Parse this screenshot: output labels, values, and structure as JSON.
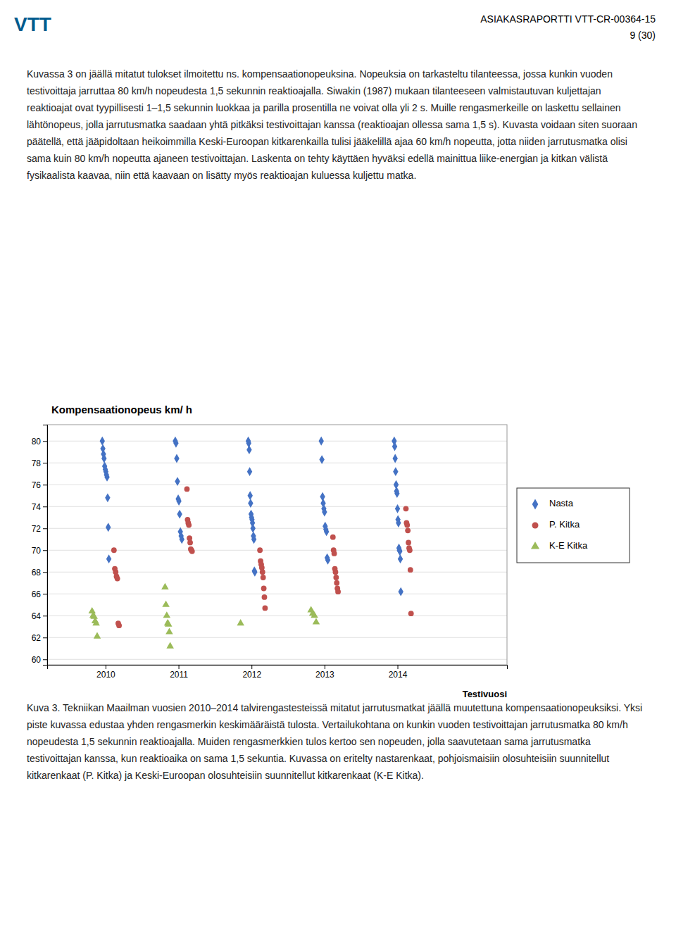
{
  "logo": "VTT",
  "header": [
    "ASIAKASRAPORTTI VTT-CR-00364-15",
    "9 (30)"
  ],
  "text": "Kuvassa 3 on jäällä mitatut tulokset ilmoitettu ns. kompensaationopeuksina. Nopeuksia on tarkasteltu tilanteessa, jossa kunkin vuoden testivoittaja jarruttaa 80 km/h nopeudesta 1,5 sekunnin reaktioajalla. Siwakin (1987) mukaan tilanteeseen valmistautuvan kuljettajan reaktioajat ovat tyypillisesti 1–1,5 sekunnin luokkaa ja parilla prosentilla ne voivat olla yli 2 s. Muille rengasmerkeille on laskettu sellainen lähtönopeus, jolla jarrutusmatka saadaan yhtä pitkäksi testivoittajan kanssa (reaktioajan ollessa sama 1,5 s). Kuvasta voidaan siten suoraan päätellä, että jääpidoltaan heikoimmilla Keski-Euroopan kitkarenkailla tulisi jääkelillä ajaa 60 km/h nopeutta, jotta niiden jarrutusmatka olisi sama kuin 80 km/h nopeutta ajaneen testivoittajan. Laskenta on tehty käyttäen hyväksi edellä mainittua liike-energian ja kitkan välistä fysikaalista kaavaa, niin että kaavaan on lisätty myös reaktioajan kuluessa kuljettu matka.",
  "caption": "Kuva 3. Tekniikan Maailman vuosien 2010–2014 talvirengastesteissä mitatut jarrutusmatkat jäällä muutettuna kompensaationopeuksiksi. Yksi piste kuvassa edustaa yhden rengasmerkin keskimääräistä tulosta. Vertailukohtana on kunkin vuoden testivoittajan jarrutusmatka 80 km/h nopeudesta 1,5 sekunnin reaktioajalla. Muiden rengasmerkkien tulos kertoo sen nopeuden, jolla saavutetaan sama jarrutusmatka testivoittajan kanssa, kun reaktioaika on sama 1,5 sekuntia. Kuvassa on eritelty nastarenkaat, pohjoismaisiin olosuhteisiin suunnitellut kitkarenkaat (P. Kitka) ja Keski-Euroopan olosuhteisiin suunnitellut kitkarenkaat (K-E Kitka).",
  "chart_data": {
    "type": "scatter",
    "title": "Kompensaationopeus km/ h",
    "x_label": "Testivuosi",
    "xlim": [
      2009.2,
      2015.5
    ],
    "xticks": [
      2010,
      2011,
      2012,
      2013,
      2014
    ],
    "ylim": [
      59.5,
      81.5
    ],
    "yticks": [
      60,
      62,
      64,
      66,
      68,
      70,
      72,
      74,
      76,
      78,
      80
    ],
    "grid": "y",
    "legend": "right",
    "series": [
      {
        "name": "Nasta",
        "color": "#4472C4",
        "marker": "diamond",
        "x": [
          2010,
          2010,
          2010,
          2010,
          2010,
          2010,
          2010,
          2010,
          2010,
          2010,
          2010,
          2010,
          2011,
          2011,
          2011,
          2011,
          2011,
          2011,
          2011,
          2011,
          2011,
          2011,
          2012,
          2012,
          2012,
          2012,
          2012,
          2012,
          2012,
          2012,
          2012,
          2012,
          2012,
          2012,
          2012,
          2012,
          2012,
          2013,
          2013,
          2013,
          2013,
          2013,
          2013,
          2013,
          2013,
          2013,
          2013,
          2013,
          2014,
          2014,
          2014,
          2014,
          2014,
          2014,
          2014,
          2014,
          2014,
          2014,
          2014,
          2014,
          2014,
          2014,
          2014
        ],
        "values": [
          80.0,
          79.3,
          78.8,
          78.4,
          77.7,
          77.4,
          77.2,
          76.9,
          76.7,
          74.8,
          72.1,
          69.2,
          80.0,
          79.8,
          78.4,
          76.3,
          74.7,
          74.5,
          73.3,
          71.7,
          71.3,
          71.0,
          80.0,
          79.8,
          79.2,
          77.2,
          75.0,
          74.3,
          73.3,
          73.0,
          72.8,
          72.5,
          72.0,
          71.3,
          71.0,
          68.1,
          68.0,
          80.0,
          78.3,
          74.9,
          74.3,
          73.8,
          73.5,
          72.2,
          71.9,
          71.7,
          69.3,
          69.1,
          80.0,
          79.5,
          78.4,
          77.2,
          76.0,
          75.4,
          75.2,
          73.8,
          72.8,
          72.5,
          70.2,
          70.0,
          69.9,
          69.2,
          66.2
        ]
      },
      {
        "name": "P. Kitka",
        "color": "#C0504D",
        "marker": "circle",
        "x": [
          2010,
          2010,
          2010,
          2010,
          2010,
          2010,
          2010,
          2011,
          2011,
          2011,
          2011,
          2011,
          2011,
          2011,
          2011,
          2011,
          2012,
          2012,
          2012,
          2012,
          2012,
          2012,
          2012,
          2012,
          2012,
          2013,
          2013,
          2013,
          2013,
          2013,
          2013,
          2013,
          2013,
          2013,
          2014,
          2014,
          2014,
          2014,
          2014,
          2014,
          2014,
          2014,
          2014
        ],
        "values": [
          70.0,
          68.3,
          68.0,
          67.6,
          67.4,
          63.3,
          63.1,
          75.6,
          72.8,
          72.5,
          72.3,
          71.1,
          70.7,
          70.1,
          70.0,
          69.9,
          70.0,
          69.0,
          68.7,
          68.4,
          68.0,
          67.5,
          66.5,
          65.7,
          64.7,
          71.2,
          70.0,
          69.7,
          68.3,
          68.0,
          67.5,
          67.0,
          66.5,
          66.2,
          73.8,
          72.5,
          72.3,
          71.8,
          70.7,
          70.2,
          70.0,
          68.2,
          64.2
        ]
      },
      {
        "name": "K-E Kitka",
        "color": "#9BBB59",
        "marker": "triangle",
        "x": [
          2010,
          2010,
          2010,
          2010,
          2010,
          2010,
          2011,
          2011,
          2011,
          2011,
          2011,
          2011,
          2011,
          2012,
          2013,
          2013,
          2013,
          2013
        ],
        "values": [
          64.4,
          64.0,
          63.9,
          63.5,
          63.3,
          62.1,
          66.6,
          65.0,
          64.0,
          63.3,
          63.2,
          62.5,
          61.2,
          63.3,
          64.5,
          64.2,
          64.0,
          63.4
        ]
      }
    ]
  }
}
